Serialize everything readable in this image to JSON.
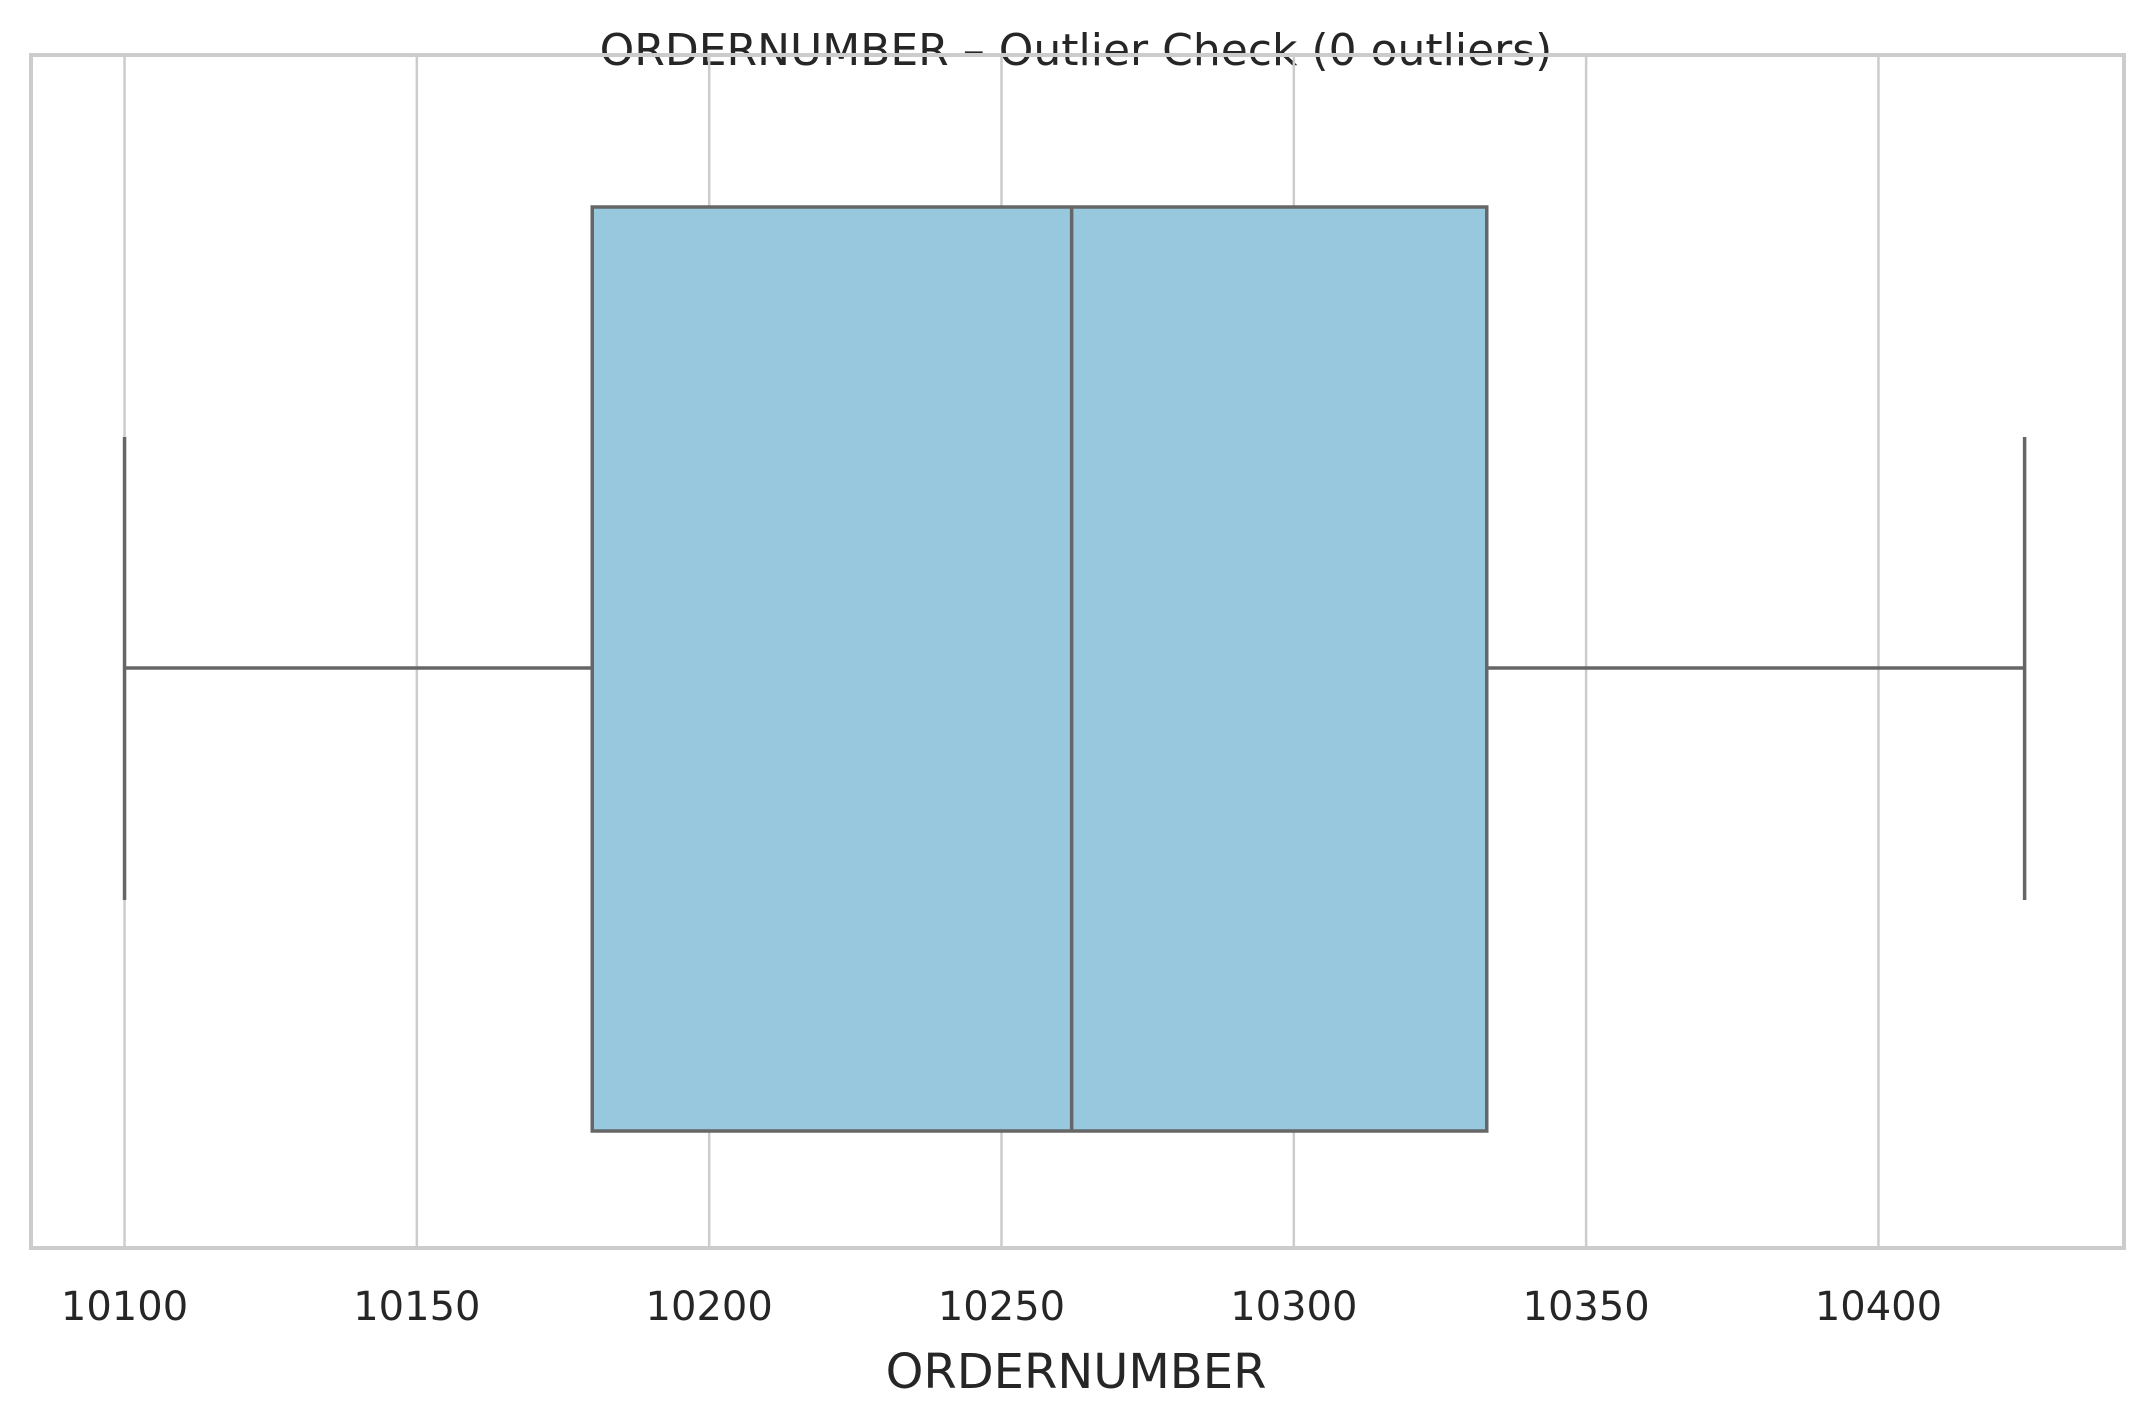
{
  "chart_data": {
    "type": "box",
    "title": "ORDERNUMBER – Outlier Check (0 outliers)",
    "xlabel": "ORDERNUMBER",
    "ylabel": "",
    "xlim": [
      10084,
      10442
    ],
    "xticks": [
      10100,
      10150,
      10200,
      10250,
      10300,
      10350,
      10400
    ],
    "xtick_labels": [
      "10100",
      "10150",
      "10200",
      "10250",
      "10300",
      "10350",
      "10400"
    ],
    "grid": true,
    "box": {
      "min": 10100,
      "q1": 10180,
      "median": 10262,
      "q3": 10333,
      "max": 10425,
      "outliers": []
    },
    "colors": {
      "box_fill": "#97c8de",
      "box_line": "#666666",
      "grid": "#cccccc",
      "frame": "#cccccc",
      "text": "#262626"
    }
  }
}
